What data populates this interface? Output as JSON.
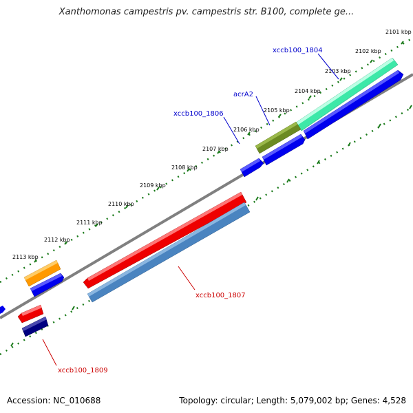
{
  "title": "Xanthomonas campestris pv. campestris str. B100, complete ge...",
  "footer": {
    "accession": "Accession: NC_010688",
    "topology": "Topology: circular; Length: 5,079,002 bp; Genes: 4,528"
  },
  "ticks": [
    "2101 kbp",
    "2102 kbp",
    "2103 kbp",
    "2104 kbp",
    "2105 kbp",
    "2106 kbp",
    "2107 kbp",
    "2108 kbp",
    "2109 kbp",
    "2110 kbp",
    "2111 kbp",
    "2112 kbp",
    "2113 kbp"
  ],
  "labels": {
    "xccb100_1804": "xccb100_1804",
    "acrA2": "acrA2",
    "xccb100_1806": "xccb100_1806",
    "xccb100_1807": "xccb100_1807",
    "xccb100_1809": "xccb100_1809"
  },
  "colors": {
    "positive_label": "#0000cc",
    "negative_label": "#cc0000",
    "backbone": "#808080",
    "tick_dots": "#1a7a1a",
    "gene_teal": "#3de8a8",
    "gene_olive": "#6b8a22",
    "gene_blue": "#0000ee",
    "gene_red": "#ee0000",
    "gene_steelblue": "#4a84c0",
    "gene_orange": "#ff9900",
    "gene_navy": "#000080"
  }
}
